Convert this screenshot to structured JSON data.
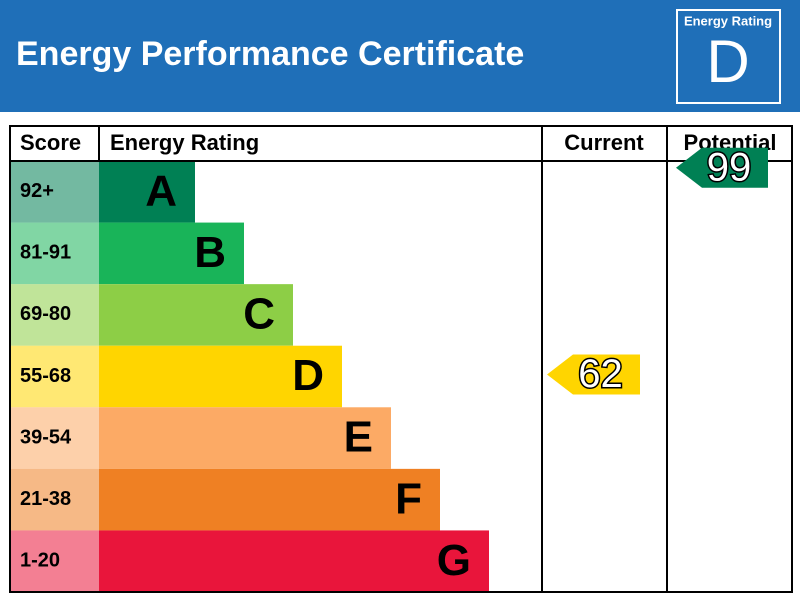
{
  "header": {
    "title": "Energy Performance Certificate"
  },
  "badge": {
    "label": "Energy Rating",
    "rating": "D"
  },
  "table": {
    "headers": [
      "Score",
      "Energy Rating",
      "Current",
      "Potential"
    ],
    "rows": [
      {
        "score": "92+",
        "band": "A",
        "color": "#008054"
      },
      {
        "score": "81-91",
        "band": "B",
        "color": "#19b459"
      },
      {
        "score": "69-80",
        "band": "C",
        "color": "#8dce46"
      },
      {
        "score": "55-68",
        "band": "D",
        "color": "#ffd500"
      },
      {
        "score": "39-54",
        "band": "E",
        "color": "#fcaa65"
      },
      {
        "score": "21-38",
        "band": "F",
        "color": "#ef8023"
      },
      {
        "score": "1-20",
        "band": "G",
        "color": "#e9153b"
      }
    ]
  },
  "current": {
    "value": 62
  },
  "potential": {
    "value": 99
  }
}
